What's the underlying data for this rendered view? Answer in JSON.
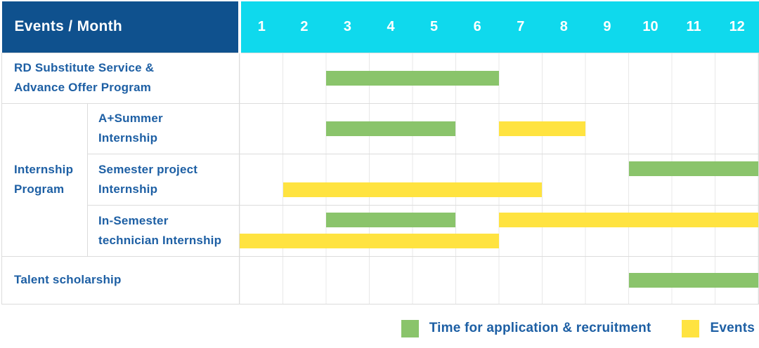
{
  "header": {
    "title": "Events / Month"
  },
  "colors": {
    "darkblue": "#0F518E",
    "cyan": "#0FD9ED",
    "green": "#8AC46B",
    "yellow": "#FFE340",
    "textblue": "#1D5FA4"
  },
  "chart_data": {
    "type": "gantt",
    "title": "Events / Month",
    "x_axis": {
      "label": "Month",
      "range": [
        1,
        12
      ]
    },
    "months": [
      "1",
      "2",
      "3",
      "4",
      "5",
      "6",
      "7",
      "8",
      "9",
      "10",
      "11",
      "12"
    ],
    "rows": [
      {
        "label": "RD Substitute Service & Advance Offer Program",
        "label_lines": [
          "RD Substitute Service &",
          "Advance Offer Program"
        ],
        "bars": [
          {
            "color": "green",
            "meaning": "Time for application & recruitment",
            "start": 3,
            "end": 6,
            "line": "center"
          }
        ]
      },
      {
        "label": "A+Summer Internship",
        "label_lines": [
          "A+Summer",
          "Internship"
        ],
        "group": {
          "label": "Internship Program",
          "label_lines": [
            "Internship",
            "Program"
          ]
        },
        "bars": [
          {
            "color": "green",
            "meaning": "Time for application & recruitment",
            "start": 3,
            "end": 5,
            "line": "center"
          },
          {
            "color": "yellow",
            "meaning": "Events",
            "start": 7,
            "end": 8,
            "line": "center"
          }
        ]
      },
      {
        "label": "Semester project Internship",
        "label_lines": [
          "Semester project",
          "Internship"
        ],
        "bars": [
          {
            "color": "green",
            "meaning": "Time for application & recruitment",
            "start": 10,
            "end": 12,
            "line": "top"
          },
          {
            "color": "yellow",
            "meaning": "Events",
            "start": 2,
            "end": 7,
            "line": "bottom"
          }
        ]
      },
      {
        "label": "In-Semester technician Internship",
        "label_lines": [
          "In-Semester",
          "technician Internship"
        ],
        "bars": [
          {
            "color": "green",
            "meaning": "Time for application & recruitment",
            "start": 3,
            "end": 5,
            "line": "top"
          },
          {
            "color": "yellow",
            "meaning": "Events",
            "start": 7,
            "end": 12,
            "line": "top"
          },
          {
            "color": "yellow",
            "meaning": "Events",
            "start": 1,
            "end": 6,
            "line": "bottom"
          }
        ]
      },
      {
        "label": "Talent scholarship",
        "label_lines": [
          "Talent scholarship"
        ],
        "bars": [
          {
            "color": "green",
            "meaning": "Time for application & recruitment",
            "start": 10,
            "end": 12,
            "line": "center"
          }
        ]
      }
    ],
    "legend": [
      {
        "color": "#8AC46B",
        "label": "Time for application & recruitment"
      },
      {
        "color": "#FFE340",
        "label": "Events"
      }
    ],
    "legend_position": "bottom-right",
    "grid": true
  },
  "legend": {
    "recruitment_label": "Time for application & recruitment",
    "events_label": "Events"
  }
}
